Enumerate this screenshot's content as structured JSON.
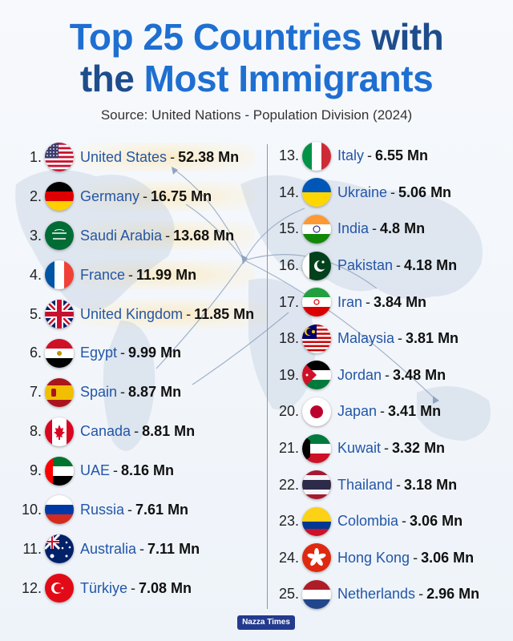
{
  "title": {
    "line1_a": "Top 25 Countries",
    "line1_b": "with",
    "line2_a": "the",
    "line2_b": "Most Immigrants"
  },
  "source": "Source: United Nations - Population Division (2024)",
  "separator": "-",
  "footer": "Nazza Times",
  "countries": [
    {
      "rank": "1.",
      "name": "United States",
      "value": "52.38 Mn",
      "flag": "us-flag-icon"
    },
    {
      "rank": "2.",
      "name": "Germany",
      "value": "16.75 Mn",
      "flag": "de-flag-icon"
    },
    {
      "rank": "3.",
      "name": "Saudi Arabia",
      "value": "13.68 Mn",
      "flag": "sa-flag-icon"
    },
    {
      "rank": "4.",
      "name": "France",
      "value": "11.99 Mn",
      "flag": "fr-flag-icon"
    },
    {
      "rank": "5.",
      "name": "United Kingdom",
      "value": "11.85 Mn",
      "flag": "gb-flag-icon"
    },
    {
      "rank": "6.",
      "name": "Egypt",
      "value": "9.99 Mn",
      "flag": "eg-flag-icon"
    },
    {
      "rank": "7.",
      "name": "Spain",
      "value": "8.87 Mn",
      "flag": "es-flag-icon"
    },
    {
      "rank": "8.",
      "name": "Canada",
      "value": "8.81 Mn",
      "flag": "ca-flag-icon"
    },
    {
      "rank": "9.",
      "name": "UAE",
      "value": "8.16 Mn",
      "flag": "ae-flag-icon"
    },
    {
      "rank": "10.",
      "name": "Russia",
      "value": "7.61 Mn",
      "flag": "ru-flag-icon"
    },
    {
      "rank": "11.",
      "name": "Australia",
      "value": "7.11 Mn",
      "flag": "au-flag-icon"
    },
    {
      "rank": "12.",
      "name": "Türkiye",
      "value": "7.08 Mn",
      "flag": "tr-flag-icon"
    },
    {
      "rank": "13.",
      "name": "Italy",
      "value": "6.55 Mn",
      "flag": "it-flag-icon"
    },
    {
      "rank": "14.",
      "name": "Ukraine",
      "value": "5.06 Mn",
      "flag": "ua-flag-icon"
    },
    {
      "rank": "15.",
      "name": "India",
      "value": "4.8 Mn",
      "flag": "in-flag-icon"
    },
    {
      "rank": "16.",
      "name": "Pakistan",
      "value": "4.18 Mn",
      "flag": "pk-flag-icon"
    },
    {
      "rank": "17.",
      "name": "Iran",
      "value": "3.84 Mn",
      "flag": "ir-flag-icon"
    },
    {
      "rank": "18.",
      "name": "Malaysia",
      "value": "3.81 Mn",
      "flag": "my-flag-icon"
    },
    {
      "rank": "19.",
      "name": "Jordan",
      "value": "3.48 Mn",
      "flag": "jo-flag-icon"
    },
    {
      "rank": "20.",
      "name": "Japan",
      "value": "3.41 Mn",
      "flag": "jp-flag-icon"
    },
    {
      "rank": "21.",
      "name": "Kuwait",
      "value": "3.32 Mn",
      "flag": "kw-flag-icon"
    },
    {
      "rank": "22.",
      "name": "Thailand",
      "value": "3.18 Mn",
      "flag": "th-flag-icon"
    },
    {
      "rank": "23.",
      "name": "Colombia",
      "value": "3.06 Mn",
      "flag": "co-flag-icon"
    },
    {
      "rank": "24.",
      "name": "Hong Kong",
      "value": "3.06 Mn",
      "flag": "hk-flag-icon"
    },
    {
      "rank": "25.",
      "name": "Netherlands",
      "value": "2.96 Mn",
      "flag": "nl-flag-icon"
    }
  ],
  "colors": {
    "title_dark": "#1e4d8c",
    "title_accent": "#1f6fd1",
    "country_name": "#2356a8",
    "footer_bg": "#233a8e"
  }
}
